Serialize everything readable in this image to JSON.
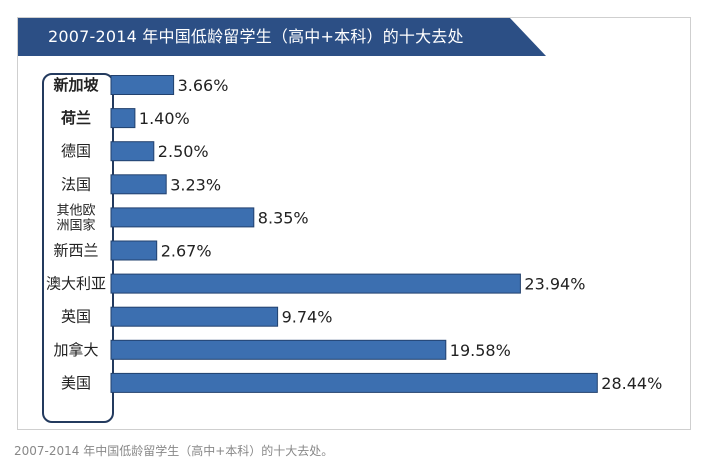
{
  "chart_data": {
    "type": "bar",
    "orientation": "horizontal",
    "title": "2007-2014 年中国低龄留学生（高中+本科）的十大去处",
    "categories": [
      "新加坡",
      "荷兰",
      "德国",
      "法国",
      "其他欧洲国家",
      "新西兰",
      "澳大利亚",
      "英国",
      "加拿大",
      "美国"
    ],
    "category_lines": [
      [
        "新加坡"
      ],
      [
        "荷兰"
      ],
      [
        "德国"
      ],
      [
        "法国"
      ],
      [
        "其他欧",
        "洲国家"
      ],
      [
        "新西兰"
      ],
      [
        "澳大利亚"
      ],
      [
        "英国"
      ],
      [
        "加拿大"
      ],
      [
        "美国"
      ]
    ],
    "values": [
      3.66,
      1.4,
      2.5,
      3.23,
      8.35,
      2.67,
      23.94,
      9.74,
      19.58,
      28.44
    ],
    "value_labels": [
      "3.66%",
      "1.40%",
      "2.50%",
      "3.23%",
      "8.35%",
      "2.67%",
      "23.94%",
      "9.74%",
      "19.58%",
      "28.44%"
    ],
    "unit": "%",
    "grid": false,
    "colors": {
      "bar": "#3c6fb0",
      "bar_border": "#22416e",
      "title_band": "#2c4f85",
      "category_box_border": "#233a5e"
    }
  },
  "caption": "2007-2014 年中国低龄留学生（高中+本科）的十大去处。"
}
